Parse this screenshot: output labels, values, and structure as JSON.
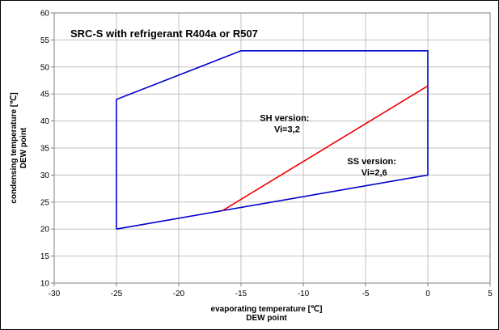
{
  "chart_data": {
    "type": "line",
    "title": "SRC-S with refrigerant R404a or R507",
    "xlabel": [
      "evaporating temperature [℃]",
      "DEW point"
    ],
    "ylabel": [
      "condensing temperature [℃]",
      "DEW point"
    ],
    "xlim": [
      -30,
      5
    ],
    "ylim": [
      10,
      60
    ],
    "xticks": [
      -30,
      -25,
      -20,
      -15,
      -10,
      -5,
      0,
      5
    ],
    "yticks": [
      10,
      15,
      20,
      25,
      30,
      35,
      40,
      45,
      50,
      55,
      60
    ],
    "grid": true,
    "series": [
      {
        "color": "#0000cc",
        "points": [
          {
            "x": -25,
            "y": 20
          },
          {
            "x": -25,
            "y": 44
          },
          {
            "x": -15,
            "y": 53
          },
          {
            "x": 0,
            "y": 53
          },
          {
            "x": 0,
            "y": 30
          },
          {
            "x": -25,
            "y": 20
          }
        ]
      },
      {
        "color": "#ee0000",
        "points": [
          {
            "x": -16.5,
            "y": 23.4
          },
          {
            "x": 0,
            "y": 46.5
          }
        ]
      }
    ],
    "annotations": [
      {
        "lines": [
          "SH version:",
          "Vi=3,2"
        ],
        "x": -11.5,
        "y": 40
      },
      {
        "lines": [
          "SS version:",
          "Vi=2,6"
        ],
        "x": -4.5,
        "y": 32
      }
    ]
  }
}
